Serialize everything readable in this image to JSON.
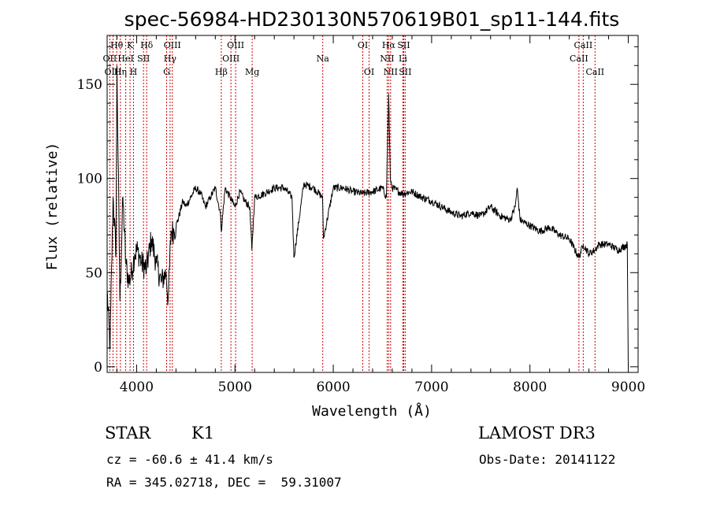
{
  "chart_data": {
    "type": "line",
    "title": "spec-56984-HD230130N570619B01_sp11-144.fits",
    "xlabel": "Wavelength (Å)",
    "ylabel": "Flux (relative)",
    "xlim": [
      3700,
      9100
    ],
    "ylim": [
      -3,
      176
    ],
    "xticks": [
      4000,
      5000,
      6000,
      7000,
      8000,
      9000
    ],
    "xtick_labels": [
      "4000",
      "5000",
      "6000",
      "7000",
      "8000",
      "9000"
    ],
    "yticks": [
      0,
      50,
      100,
      150
    ],
    "ytick_labels": [
      "0",
      "50",
      "100",
      "150"
    ],
    "series": [
      {
        "name": "flux",
        "x": [
          3700,
          3730,
          3760,
          3790,
          3800,
          3830,
          3860,
          3890,
          3920,
          3950,
          3980,
          4010,
          4050,
          4100,
          4150,
          4200,
          4250,
          4300,
          4320,
          4350,
          4380,
          4420,
          4470,
          4500,
          4550,
          4600,
          4650,
          4700,
          4750,
          4800,
          4850,
          4861,
          4900,
          4950,
          5000,
          5050,
          5100,
          5150,
          5172,
          5200,
          5300,
          5400,
          5500,
          5580,
          5600,
          5700,
          5800,
          5890,
          5900,
          6000,
          6100,
          6200,
          6300,
          6400,
          6500,
          6540,
          6563,
          6580,
          6600,
          6700,
          6800,
          6900,
          7000,
          7100,
          7200,
          7300,
          7400,
          7500,
          7600,
          7700,
          7800,
          7850,
          7870,
          7900,
          8000,
          8100,
          8200,
          8300,
          8400,
          8498,
          8542,
          8600,
          8662,
          8700,
          8800,
          8900,
          8990,
          9000
        ],
        "y": [
          40,
          10,
          90,
          60,
          160,
          35,
          90,
          55,
          45,
          50,
          60,
          62,
          55,
          52,
          68,
          55,
          45,
          50,
          35,
          72,
          72,
          78,
          88,
          85,
          90,
          95,
          92,
          85,
          90,
          95,
          82,
          72,
          95,
          90,
          85,
          93,
          88,
          85,
          62,
          90,
          92,
          95,
          95,
          90,
          58,
          97,
          95,
          90,
          68,
          95,
          95,
          93,
          92,
          93,
          95,
          90,
          145,
          100,
          95,
          92,
          93,
          90,
          88,
          85,
          82,
          80,
          82,
          80,
          85,
          80,
          78,
          85,
          95,
          78,
          75,
          72,
          74,
          70,
          68,
          58,
          65,
          60,
          62,
          65,
          65,
          62,
          65,
          0
        ]
      }
    ],
    "line_markers": [
      {
        "label": "Hθ",
        "x": 3797,
        "row": 1
      },
      {
        "label": "OII",
        "x": 3727,
        "row": 2
      },
      {
        "label": "OIII",
        "x": 3760,
        "row": 3
      },
      {
        "label": "K",
        "x": 3933,
        "row": 1
      },
      {
        "label": "HeI",
        "x": 3889,
        "row": 2
      },
      {
        "label": "Hη",
        "x": 3835,
        "row": 3
      },
      {
        "label": "Hδ",
        "x": 4102,
        "row": 1
      },
      {
        "label": "SII",
        "x": 4070,
        "row": 2
      },
      {
        "label": "H",
        "x": 3968,
        "row": 3
      },
      {
        "label": "OIII",
        "x": 4363,
        "row": 1
      },
      {
        "label": "Hγ",
        "x": 4340,
        "row": 2
      },
      {
        "label": "G",
        "x": 4305,
        "row": 3
      },
      {
        "label": "OIII",
        "x": 5007,
        "row": 1
      },
      {
        "label": "OIII",
        "x": 4959,
        "row": 2
      },
      {
        "label": "Hβ",
        "x": 4861,
        "row": 3
      },
      {
        "label": "Mg",
        "x": 5175,
        "row": 3
      },
      {
        "label": "Na",
        "x": 5893,
        "row": 2
      },
      {
        "label": "OI",
        "x": 6300,
        "row": 1
      },
      {
        "label": "OI",
        "x": 6364,
        "row": 3
      },
      {
        "label": "Hα",
        "x": 6563,
        "row": 1
      },
      {
        "label": "SII",
        "x": 6716,
        "row": 1
      },
      {
        "label": "NII",
        "x": 6548,
        "row": 2
      },
      {
        "label": "Li",
        "x": 6708,
        "row": 2
      },
      {
        "label": "NII",
        "x": 6583,
        "row": 3
      },
      {
        "label": "SII",
        "x": 6731,
        "row": 3
      },
      {
        "label": "CaII",
        "x": 8542,
        "row": 1
      },
      {
        "label": "CaII",
        "x": 8498,
        "row": 2
      },
      {
        "label": "CaII",
        "x": 8662,
        "row": 3
      }
    ]
  },
  "info": {
    "object_class": "STAR",
    "subclass": "K1",
    "survey": "LAMOST DR3",
    "cz_text": "cz = -60.6 ± 41.4 km/s",
    "obs_date_text": "Obs-Date: 20141122",
    "radec_text": "RA = 345.02718, DEC =  59.31007"
  },
  "colors": {
    "marker_line": "#cc0000",
    "spectrum": "#000000",
    "axis": "#000000"
  }
}
